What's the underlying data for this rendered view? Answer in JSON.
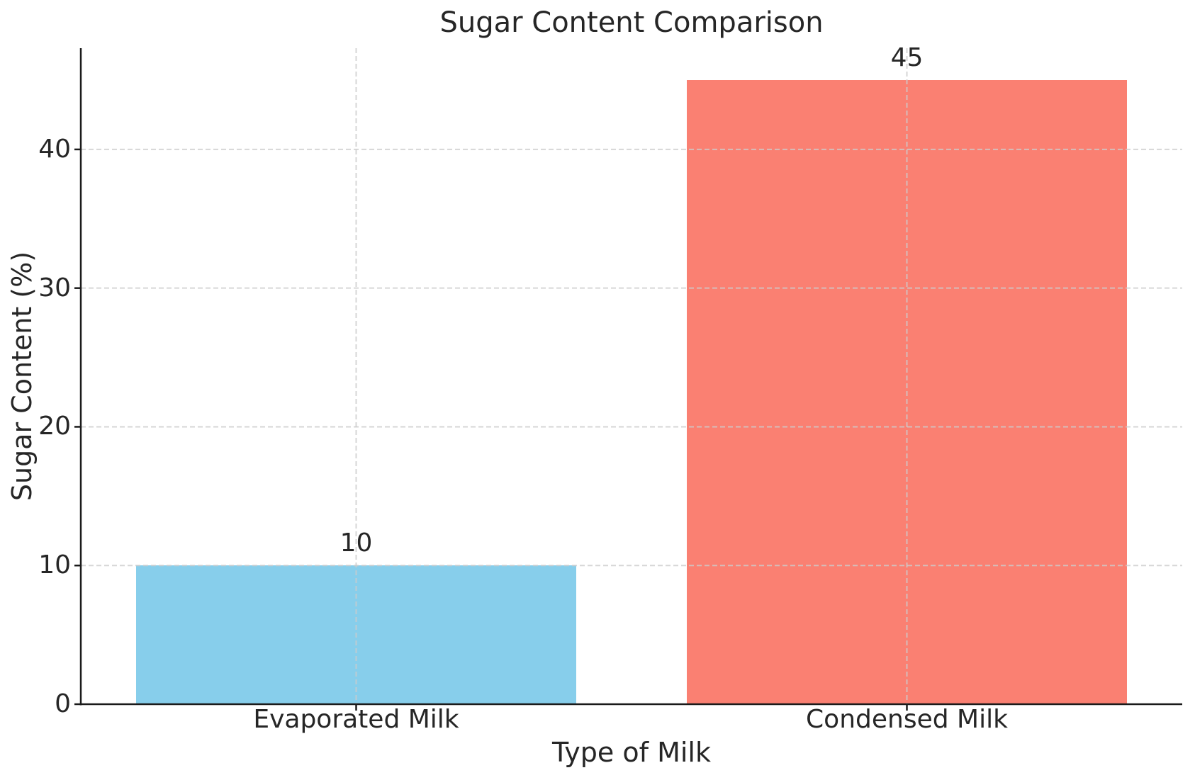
{
  "chart_data": {
    "type": "bar",
    "title": "Sugar Content Comparison",
    "xlabel": "Type of Milk",
    "ylabel": "Sugar Content (%)",
    "categories": [
      "Evaporated Milk",
      "Condensed Milk"
    ],
    "values": [
      10,
      45
    ],
    "bar_value_labels": [
      "10",
      "45"
    ],
    "bar_colors": [
      "#87CEEB",
      "#FA8072"
    ],
    "yticks": [
      0,
      10,
      20,
      30,
      40
    ],
    "ytick_labels": [
      "0",
      "10",
      "20",
      "30",
      "40"
    ],
    "ylim": [
      0,
      47.3
    ],
    "bar_width_fraction": 0.8,
    "legend": null,
    "grid": {
      "visible": true,
      "axes": "both",
      "style": "dashed",
      "color": "#cccccc",
      "opacity": 0.8,
      "above_bars": true
    },
    "colors": {
      "background": "#ffffff",
      "text": "#262626",
      "spine": "#1a1a1a"
    }
  }
}
